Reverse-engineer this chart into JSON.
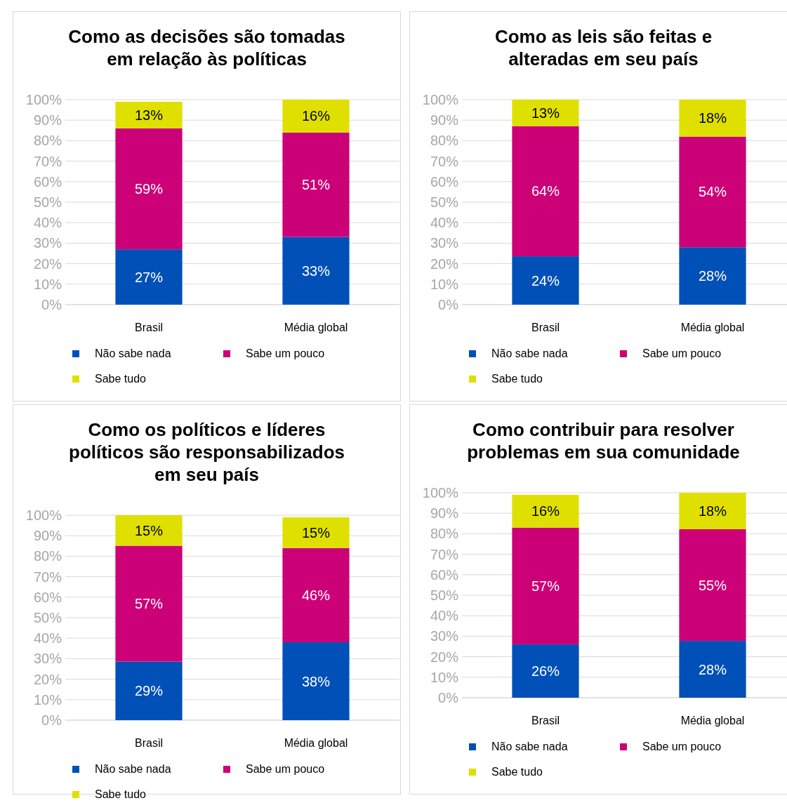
{
  "chart_data": [
    {
      "type": "bar",
      "title": "Como as decisões são tomadas\nem relação às políticas",
      "categories": [
        "Brasil",
        "Média global"
      ],
      "stacked": true,
      "grid": "y",
      "legend": "bottom",
      "ylim": [
        0,
        100
      ],
      "yticks": [
        {
          "value": 0,
          "label": "0%"
        },
        {
          "value": 10,
          "label": "10%"
        },
        {
          "value": 20,
          "label": "20%"
        },
        {
          "value": 30,
          "label": "30%"
        },
        {
          "value": 40,
          "label": "40%"
        },
        {
          "value": 50,
          "label": "50%"
        },
        {
          "value": 60,
          "label": "60%"
        },
        {
          "value": 70,
          "label": "70%"
        },
        {
          "value": 80,
          "label": "80%"
        },
        {
          "value": 90,
          "label": "90%"
        },
        {
          "value": 100,
          "label": "100%"
        }
      ],
      "series": [
        {
          "name": "Não sabe nada",
          "color": "#0050b8",
          "values": [
            27,
            33
          ],
          "value_labels": [
            "27%",
            "33%"
          ]
        },
        {
          "name": "Sabe um pouco",
          "color": "#cc0077",
          "values": [
            59,
            51
          ],
          "value_labels": [
            "59%",
            "51%"
          ]
        },
        {
          "name": "Sabe tudo",
          "color": "#e0e000",
          "values": [
            13,
            16
          ],
          "value_labels": [
            "13%",
            "16%"
          ]
        }
      ]
    },
    {
      "type": "bar",
      "title": "Como as leis são feitas e\nalteradas em seu país",
      "categories": [
        "Brasil",
        "Média global"
      ],
      "stacked": true,
      "grid": "y",
      "legend": "bottom",
      "ylim": [
        0,
        100
      ],
      "yticks": [
        {
          "value": 0,
          "label": "0%"
        },
        {
          "value": 10,
          "label": "10%"
        },
        {
          "value": 20,
          "label": "20%"
        },
        {
          "value": 30,
          "label": "30%"
        },
        {
          "value": 40,
          "label": "40%"
        },
        {
          "value": 50,
          "label": "50%"
        },
        {
          "value": 60,
          "label": "60%"
        },
        {
          "value": 70,
          "label": "70%"
        },
        {
          "value": 80,
          "label": "80%"
        },
        {
          "value": 90,
          "label": "90%"
        },
        {
          "value": 100,
          "label": "100%"
        }
      ],
      "series": [
        {
          "name": "Não sabe nada",
          "color": "#0050b8",
          "values": [
            23.6,
            28
          ],
          "value_labels": [
            "24%",
            "28%"
          ]
        },
        {
          "name": "Sabe um pouco",
          "color": "#cc0077",
          "values": [
            63.5,
            54
          ],
          "value_labels": [
            "64%",
            "54%"
          ]
        },
        {
          "name": "Sabe tudo",
          "color": "#e0e000",
          "values": [
            12.9,
            18
          ],
          "value_labels": [
            "13%",
            "18%"
          ]
        }
      ]
    },
    {
      "type": "bar",
      "title": "Como os políticos e líderes\npolíticos são responsabilizados\nem seu país",
      "categories": [
        "Brasil",
        "Média global"
      ],
      "stacked": true,
      "grid": "y",
      "legend": "bottom",
      "ylim": [
        0,
        100
      ],
      "yticks": [
        {
          "value": 0,
          "label": "0%"
        },
        {
          "value": 10,
          "label": "10%"
        },
        {
          "value": 20,
          "label": "20%"
        },
        {
          "value": 30,
          "label": "30%"
        },
        {
          "value": 40,
          "label": "40%"
        },
        {
          "value": 50,
          "label": "50%"
        },
        {
          "value": 60,
          "label": "60%"
        },
        {
          "value": 70,
          "label": "70%"
        },
        {
          "value": 80,
          "label": "80%"
        },
        {
          "value": 90,
          "label": "90%"
        },
        {
          "value": 100,
          "label": "100%"
        }
      ],
      "series": [
        {
          "name": "Não sabe nada",
          "color": "#0050b8",
          "values": [
            28.6,
            38
          ],
          "value_labels": [
            "29%",
            "38%"
          ]
        },
        {
          "name": "Sabe um pouco",
          "color": "#cc0077",
          "values": [
            56.5,
            46
          ],
          "value_labels": [
            "57%",
            "46%"
          ]
        },
        {
          "name": "Sabe tudo",
          "color": "#e0e000",
          "values": [
            14.9,
            15
          ],
          "value_labels": [
            "15%",
            "15%"
          ]
        }
      ]
    },
    {
      "type": "bar",
      "title": "Como contribuir para resolver\nproblemas em sua comunidade",
      "categories": [
        "Brasil",
        "Média global"
      ],
      "stacked": true,
      "grid": "y",
      "legend": "bottom",
      "ylim": [
        0,
        100
      ],
      "yticks": [
        {
          "value": 0,
          "label": "0%"
        },
        {
          "value": 10,
          "label": "10%"
        },
        {
          "value": 20,
          "label": "20%"
        },
        {
          "value": 30,
          "label": "30%"
        },
        {
          "value": 40,
          "label": "40%"
        },
        {
          "value": 50,
          "label": "50%"
        },
        {
          "value": 60,
          "label": "60%"
        },
        {
          "value": 70,
          "label": "70%"
        },
        {
          "value": 80,
          "label": "80%"
        },
        {
          "value": 90,
          "label": "90%"
        },
        {
          "value": 100,
          "label": "100%"
        }
      ],
      "series": [
        {
          "name": "Não sabe nada",
          "color": "#0050b8",
          "values": [
            26,
            27.7
          ],
          "value_labels": [
            "26%",
            "28%"
          ]
        },
        {
          "name": "Sabe um pouco",
          "color": "#cc0077",
          "values": [
            57,
            54.5
          ],
          "value_labels": [
            "57%",
            "55%"
          ]
        },
        {
          "name": "Sabe tudo",
          "color": "#e0e000",
          "values": [
            16,
            17.8
          ],
          "value_labels": [
            "16%",
            "18%"
          ]
        }
      ]
    }
  ]
}
